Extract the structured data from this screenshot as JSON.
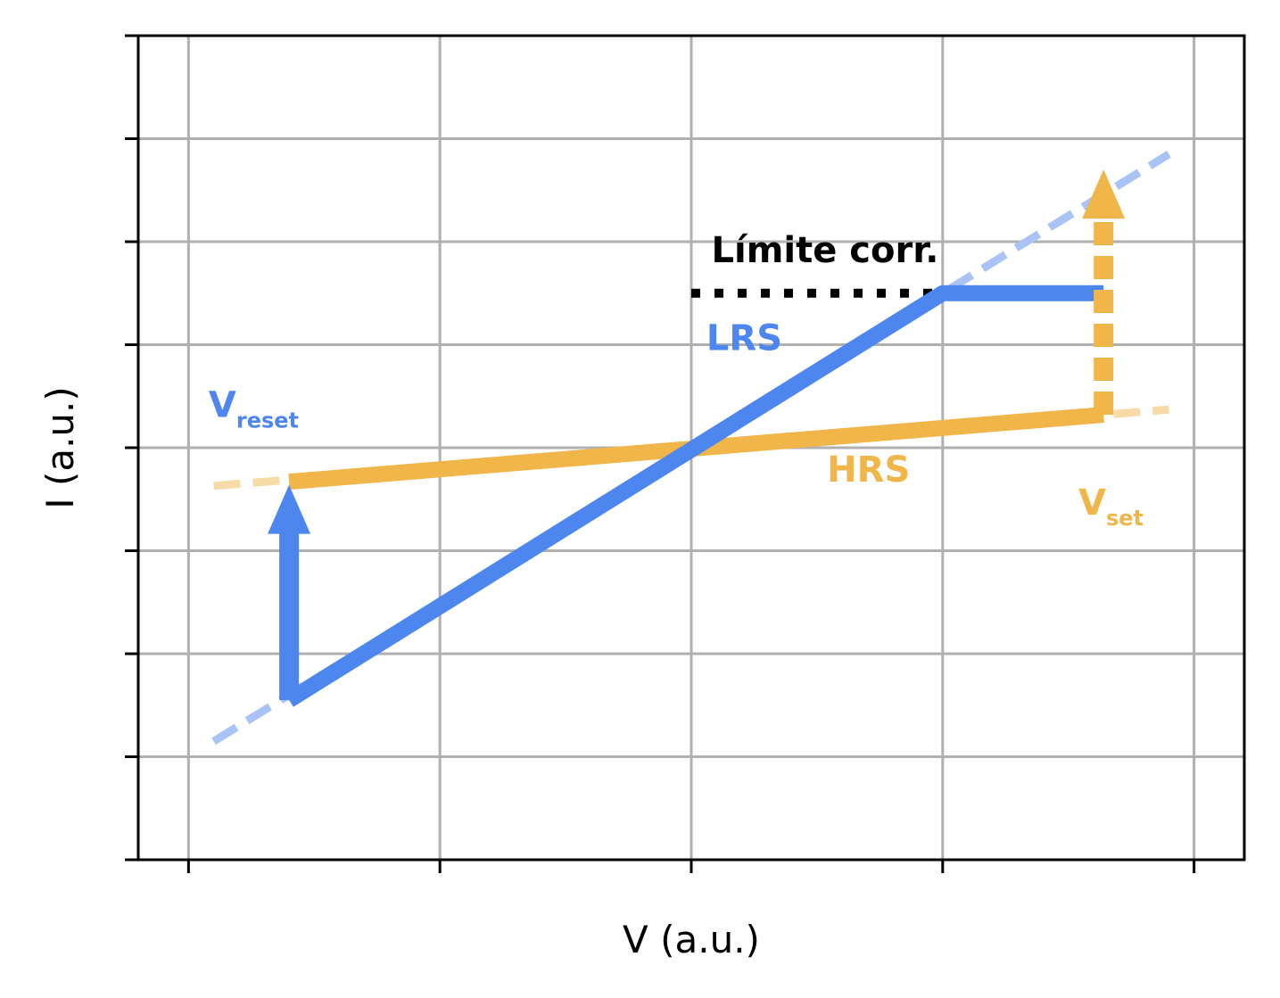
{
  "chart_data": {
    "type": "line",
    "title": "",
    "xlabel": "V (a.u.)",
    "ylabel": "I (a.u.)",
    "xlim": [
      -1.1,
      1.1
    ],
    "ylim": [
      -4,
      4
    ],
    "x_gridlines": [
      -1,
      -0.5,
      0,
      0.5,
      1
    ],
    "y_gridlines": [
      -3,
      -2,
      -1,
      0,
      1,
      2,
      3
    ],
    "tick_labels_shown": false,
    "grid": true,
    "legend": "none",
    "series": [
      {
        "name": "LRS",
        "color": "#4e86f0",
        "style": "solid",
        "points": [
          [
            -0.8,
            -2.45
          ],
          [
            0.5,
            1.5
          ],
          [
            0.82,
            1.5
          ]
        ]
      },
      {
        "name": "HRS",
        "color": "#f0b64a",
        "style": "solid",
        "points": [
          [
            -0.8,
            -0.33
          ],
          [
            0.82,
            0.32
          ]
        ]
      },
      {
        "style": "dashed",
        "color": "#a9c3f4",
        "points": [
          [
            -0.95,
            -2.85
          ],
          [
            0.95,
            2.85
          ]
        ]
      },
      {
        "style": "dashed",
        "color": "#f6dba6",
        "points": [
          [
            -0.95,
            -0.37
          ],
          [
            0.95,
            0.37
          ]
        ]
      },
      {
        "style": "dotted",
        "color": "#000000",
        "points": [
          [
            0.0,
            1.5
          ],
          [
            0.5,
            1.5
          ]
        ]
      }
    ],
    "arrows": [
      {
        "from": [
          -0.8,
          -2.45
        ],
        "to": [
          -0.8,
          -0.36
        ],
        "color": "#4e86f0",
        "style": "solid"
      },
      {
        "from": [
          0.82,
          0.32
        ],
        "to": [
          0.82,
          2.7
        ],
        "color": "#f0b64a",
        "style": "dashed"
      }
    ],
    "annotations": [
      {
        "text": "Límite corr.",
        "x": 0.04,
        "y": 1.8,
        "color": "#000000"
      },
      {
        "text": "LRS",
        "x": 0.03,
        "y": 0.95,
        "color": "#4e86f0"
      },
      {
        "text": "HRS",
        "x": 0.27,
        "y": -0.33,
        "color": "#f0b64a"
      },
      {
        "text": "V",
        "sub": "reset",
        "x": -0.96,
        "y": 0.3,
        "color": "#4e86f0"
      },
      {
        "text": "V",
        "sub": "set",
        "x": 0.77,
        "y": -0.65,
        "color": "#f0b64a"
      }
    ]
  }
}
